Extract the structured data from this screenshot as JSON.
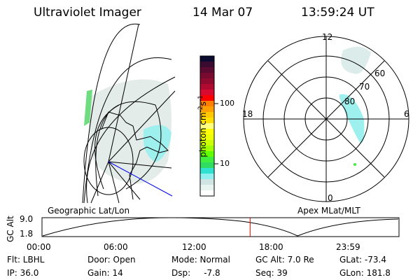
{
  "header": {
    "title": "Ultraviolet Imager",
    "date": "14 Mar 07",
    "time": "13:59:24 UT"
  },
  "colorbar": {
    "label": "photon cm",
    "label_sup1": "-2",
    "label_s": "s",
    "label_sup2": "-1",
    "ticks": [
      "100",
      "10"
    ],
    "colors": [
      "#0a0a30",
      "#3a0a30",
      "#5a0a30",
      "#780a30",
      "#900a30",
      "#b00a30",
      "#d80a30",
      "#ff0000",
      "#ff8000",
      "#ffa000",
      "#ffc800",
      "#ffe000",
      "#ffff80",
      "#ffff00",
      "#eeff00",
      "#ccff00",
      "#a0ff00",
      "#60ff00",
      "#40ee40",
      "#30dd60",
      "#30e0d0",
      "#90f0f0",
      "#d0e4e4",
      "#e8f4f0",
      "#ffffff"
    ]
  },
  "polar": {
    "labels": {
      "top": "12",
      "bottom": "0",
      "left": "18",
      "right": "6"
    },
    "rings": [
      "80",
      "70",
      "60"
    ]
  },
  "timeline": {
    "left_title": "Geographic Lat/Lon",
    "right_title": "Apex MLat/MLT",
    "ylabel": "GC Alt",
    "y_ticks": [
      "9.0",
      "1.8"
    ],
    "x_ticks": [
      "00:00",
      "06:00",
      "12:00",
      "18:00",
      "23:59"
    ],
    "current_time_fraction": 0.583,
    "marker_color": "#e00000"
  },
  "info": {
    "flt": "Flt: LBHL",
    "ip": "IP: 36.0",
    "door": "Door: Open",
    "gain": "Gain: 14",
    "mode": "Mode: Normal",
    "dsp": "Dsp:     -7.8",
    "gcalt": "GC Alt: 7.0 Re",
    "seq": "Seq: 39",
    "glat": "GLat: -73.4",
    "glon": "GLon: 181.8"
  }
}
